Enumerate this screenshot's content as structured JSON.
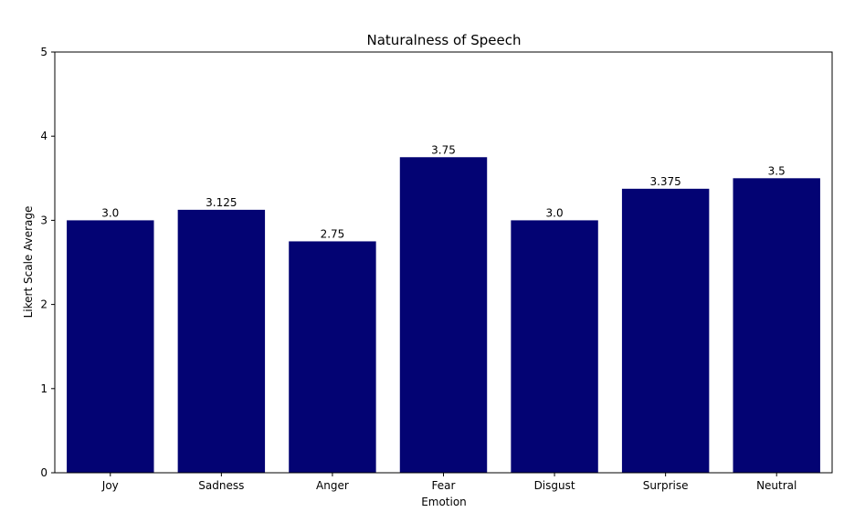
{
  "chart_data": {
    "type": "bar",
    "title": "Naturalness of Speech",
    "xlabel": "Emotion",
    "ylabel": "Likert Scale Average",
    "categories": [
      "Joy",
      "Sadness",
      "Anger",
      "Fear",
      "Disgust",
      "Surprise",
      "Neutral"
    ],
    "values": [
      3.0,
      3.125,
      2.75,
      3.75,
      3.0,
      3.375,
      3.5
    ],
    "value_labels": [
      "3.0",
      "3.125",
      "2.75",
      "3.75",
      "3.0",
      "3.375",
      "3.5"
    ],
    "ylim": [
      0,
      5
    ],
    "yticks": [
      0,
      1,
      2,
      3,
      4,
      5
    ],
    "grid": false,
    "bar_color": "#030373"
  }
}
